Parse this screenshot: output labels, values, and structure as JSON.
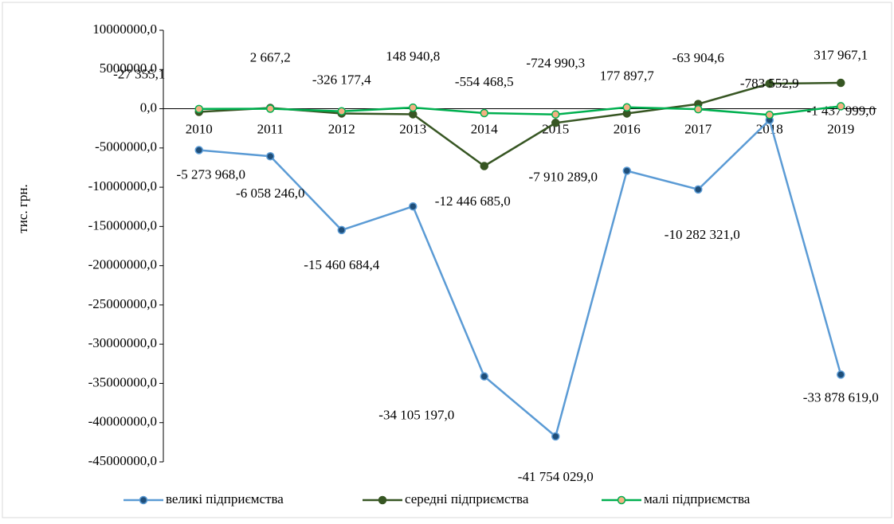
{
  "chart_data": {
    "type": "line",
    "y_axis_label": "тис. грн.",
    "categories": [
      "2010",
      "2011",
      "2012",
      "2013",
      "2014",
      "2015",
      "2016",
      "2017",
      "2018",
      "2019"
    ],
    "ylim": [
      -45000000,
      10000000
    ],
    "yticks": [
      {
        "value": 10000000,
        "label": "10000000,0"
      },
      {
        "value": 5000000,
        "label": "5000000,0"
      },
      {
        "value": 0,
        "label": "0,0"
      },
      {
        "value": -5000000,
        "label": "-5000000,0"
      },
      {
        "value": -10000000,
        "label": "-10000000,0"
      },
      {
        "value": -15000000,
        "label": "-15000000,0"
      },
      {
        "value": -20000000,
        "label": "-20000000,0"
      },
      {
        "value": -25000000,
        "label": "-25000000,0"
      },
      {
        "value": -30000000,
        "label": "-30000000,0"
      },
      {
        "value": -35000000,
        "label": "-35000000,0"
      },
      {
        "value": -40000000,
        "label": "-40000000,0"
      },
      {
        "value": -45000000,
        "label": "-45000000,0"
      }
    ],
    "legend": "bottom",
    "series": [
      {
        "name": "великі підприємства",
        "color": "#5b9bd5",
        "marker_color": "#1f4e79",
        "values": [
          -5273968,
          -6058246,
          -15460684.4,
          -12446685,
          -34105197,
          -41754029,
          -7910289,
          -10282321,
          -1437999,
          -33878619
        ],
        "value_labels": [
          "-5 273 968,0",
          "-6 058 246,0",
          "-15 460 684,4",
          "-12 446 685,0",
          "-34 105 197,0",
          "-41 754 029,0",
          "-7 910 289,0",
          "-10 282 321,0",
          "-1 437 999,0",
          "-33 878 619,0"
        ]
      },
      {
        "name": "середні підприємства",
        "color": "#375623",
        "marker_color": "#375623",
        "values": [
          -400000,
          100000,
          -600000,
          -700000,
          -7300000,
          -1800000,
          -600000,
          600000,
          3200000,
          3300000
        ]
      },
      {
        "name": "малі підприємства",
        "color": "#00b050",
        "marker_color": "#f4b183",
        "values": [
          -27355.1,
          2667.2,
          -326177.4,
          148940.8,
          -554468.5,
          -724990.3,
          177897.7,
          -63904.6,
          -783552.9,
          317967.1
        ],
        "value_labels": [
          "-27 355,1",
          "2 667,2",
          "-326 177,4",
          "148 940,8",
          "-554 468,5",
          "-724 990,3",
          "177 897,7",
          "-63 904,6",
          "-783 552,9",
          "317 967,1"
        ]
      }
    ]
  }
}
